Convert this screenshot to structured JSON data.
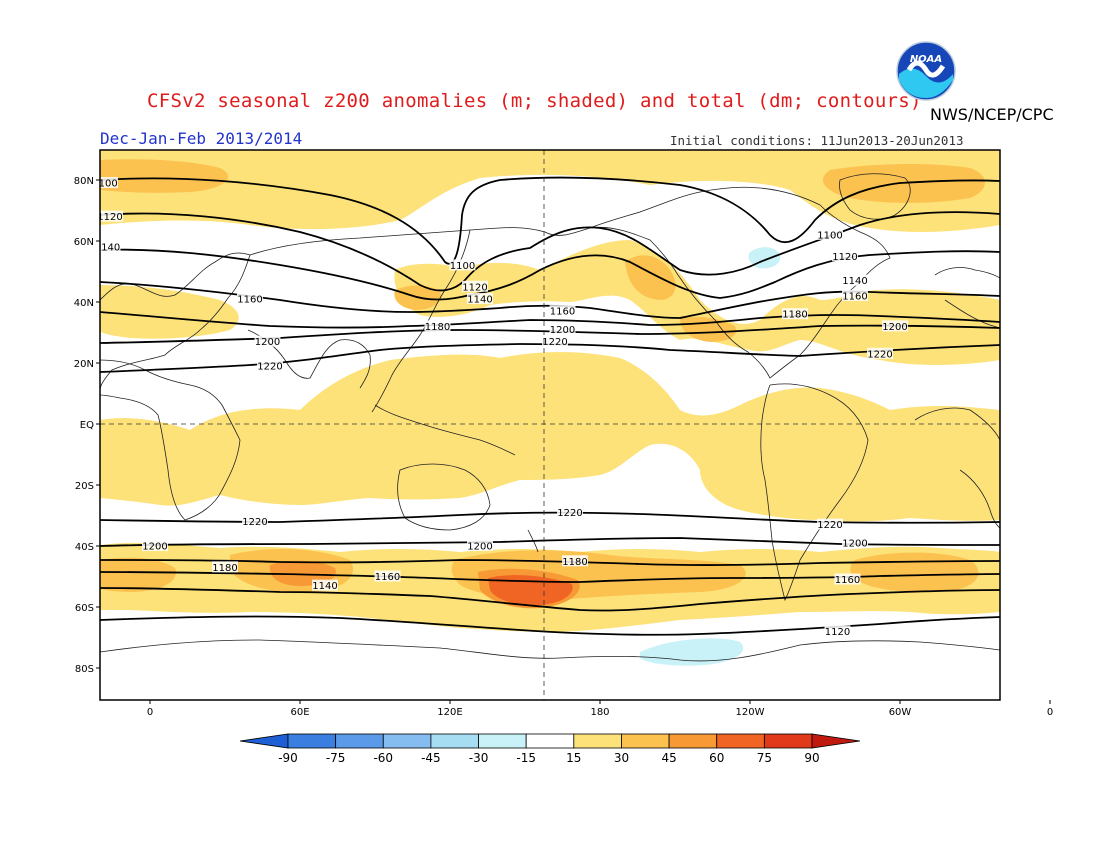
{
  "header": {
    "title": "CFSv2 seasonal z200 anomalies (m; shaded) and total (dm; contours)",
    "agency": "NWS/NCEP/CPC",
    "season": "Dec-Jan-Feb 2013/2014",
    "initial_conditions": "Initial conditions: 11Jun2013-20Jun2013",
    "logo_text": "NOAA"
  },
  "colors": {
    "n90": "#1f5fd6",
    "n75": "#3a7ee0",
    "n60": "#5a9ae8",
    "n45": "#86bdf0",
    "n30": "#a6ddf3",
    "n15": "#c8f2f7",
    "neutral": "#ffffff",
    "p15": "#fde27a",
    "p30": "#fbc24f",
    "p45": "#f79a36",
    "p60": "#f06424",
    "p75": "#e03a1a",
    "p90": "#c01a10",
    "land_outline": "#222222",
    "contour": "#000000"
  },
  "map": {
    "lat_labels": [
      "80N",
      "60N",
      "40N",
      "20N",
      "EQ",
      "20S",
      "40S",
      "60S",
      "80S"
    ],
    "lon_labels": [
      "0",
      "60E",
      "120E",
      "180",
      "120W",
      "60W",
      "0"
    ],
    "contours": [
      {
        "value": "1100",
        "label_positions": [
          [
            -18,
            79
          ],
          [
            125,
            52
          ],
          [
            272,
            62
          ]
        ]
      },
      {
        "value": "1120",
        "label_positions": [
          [
            -16,
            68
          ],
          [
            130,
            45
          ],
          [
            278,
            55
          ],
          [
            275,
            -68
          ]
        ]
      },
      {
        "value": "1140",
        "label_positions": [
          [
            -17,
            58
          ],
          [
            132,
            41
          ],
          [
            282,
            47
          ],
          [
            70,
            -53
          ]
        ]
      },
      {
        "value": "1160",
        "label_positions": [
          [
            40,
            41
          ],
          [
            165,
            37
          ],
          [
            282,
            42
          ],
          [
            95,
            -50
          ],
          [
            279,
            -51
          ]
        ]
      },
      {
        "value": "1180",
        "label_positions": [
          [
            115,
            32
          ],
          [
            258,
            36
          ],
          [
            30,
            -47
          ],
          [
            170,
            -45
          ]
        ]
      },
      {
        "value": "1200",
        "label_positions": [
          [
            47,
            27
          ],
          [
            165,
            31
          ],
          [
            298,
            32
          ],
          [
            2,
            -40
          ],
          [
            132,
            -40
          ],
          [
            282,
            -39
          ]
        ]
      },
      {
        "value": "1220",
        "label_positions": [
          [
            162,
            27
          ],
          [
            292,
            23
          ],
          [
            48,
            19
          ],
          [
            42,
            -32
          ],
          [
            168,
            -29
          ],
          [
            272,
            -33
          ]
        ]
      }
    ]
  },
  "colorbar": {
    "ticks": [
      "-90",
      "-75",
      "-60",
      "-45",
      "-30",
      "-15",
      "15",
      "30",
      "45",
      "60",
      "75",
      "90"
    ]
  }
}
